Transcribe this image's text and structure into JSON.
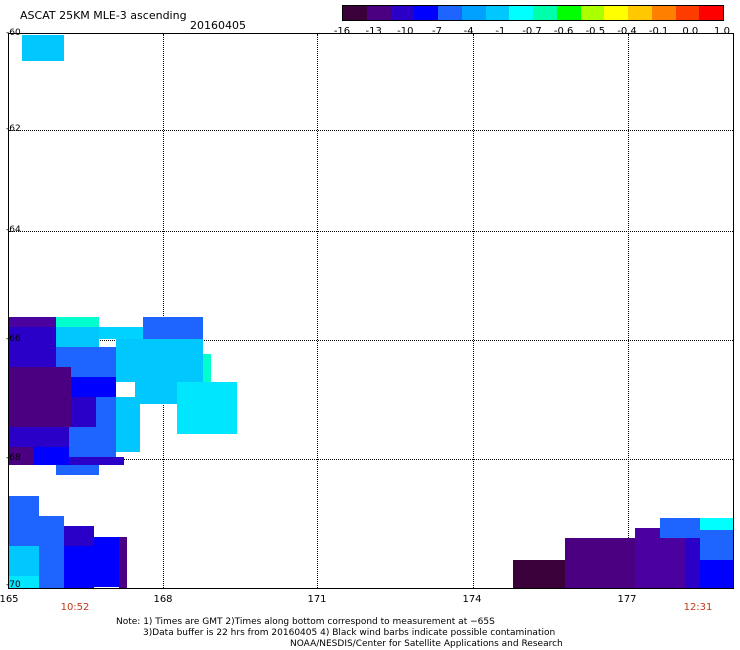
{
  "header": {
    "title": "ASCAT 25KM MLE-3 ascending",
    "date": "20160405"
  },
  "colorbar": {
    "colors": [
      "#3a003a",
      "#4b0082",
      "#2a00c8",
      "#0000ff",
      "#1e64ff",
      "#00a0ff",
      "#00c8ff",
      "#00ffff",
      "#00ffaa",
      "#00ff00",
      "#aaff00",
      "#ffff00",
      "#ffc800",
      "#ff8000",
      "#ff3c00",
      "#ff0000"
    ],
    "labels": [
      "-16",
      "-13",
      "-10",
      "-7",
      "-4",
      "-1",
      "-0.7",
      "-0.6",
      "-0.5",
      "-0.4",
      "-0.1",
      "0.0",
      "1.0"
    ]
  },
  "axes": {
    "y_ticks": [
      "-60",
      "-62",
      "-64",
      "-66",
      "-68",
      "-70"
    ],
    "x_ticks": [
      "165",
      "168",
      "171",
      "174",
      "177"
    ],
    "time_labels": [
      "10:52",
      "12:31"
    ]
  },
  "notes": {
    "line1": "Note: 1) Times are GMT 2)Times along bottom correspond to measurement at −65S",
    "line2": "3)Data buffer is 22 hrs from 20160405 4) Black wind barbs indicate possible contamination",
    "line3": "NOAA/NESDIS/Center for Satellite Applications and Research"
  }
}
